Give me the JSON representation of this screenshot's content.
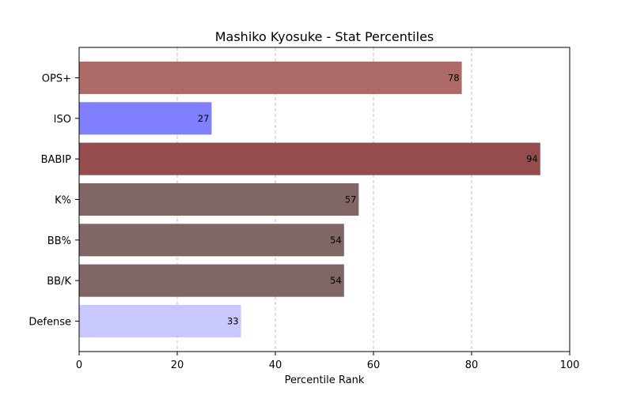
{
  "chart_data": {
    "type": "bar",
    "orientation": "horizontal",
    "title": "Mashiko Kyosuke - Stat Percentiles",
    "xlabel": "Percentile Rank",
    "ylabel": "",
    "xlim": [
      0,
      100
    ],
    "xticks": [
      0,
      20,
      40,
      60,
      80,
      100
    ],
    "grid": "x-dashed",
    "categories": [
      "OPS+",
      "ISO",
      "BABIP",
      "K%",
      "BB%",
      "BB/K",
      "Defense"
    ],
    "values": [
      78,
      27,
      94,
      57,
      54,
      54,
      33
    ],
    "colors": [
      "#ad6a66",
      "#8080ff",
      "#944c4c",
      "#806665",
      "#806665",
      "#806665",
      "#c8c8ff"
    ]
  }
}
